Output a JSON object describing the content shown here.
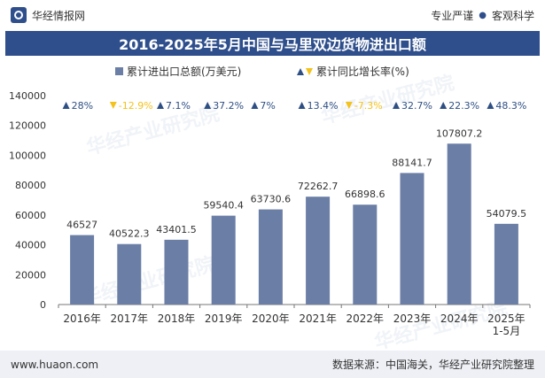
{
  "header": {
    "site": "华经情报网",
    "tag1": "专业严谨",
    "tag2": "客观科学"
  },
  "title": "2016-2025年5月中国与马里双边货物进出口额",
  "footer": {
    "url": "www.huaon.com",
    "source": "数据来源：中国海关，华经产业研究院整理"
  },
  "watermark": "华经产业研究院",
  "colors": {
    "bar": "#6b7ea6",
    "up": "#2e4f84",
    "down": "#f3c21c",
    "title_bg": "#2f4f8c"
  },
  "chart_data": {
    "type": "bar",
    "categories": [
      "2016年",
      "2017年",
      "2018年",
      "2019年",
      "2020年",
      "2021年",
      "2022年",
      "2023年",
      "2024年",
      "2025年\n1-5月"
    ],
    "series": [
      {
        "name": "累计进出口总额(万美元)",
        "values": [
          46527,
          40522.3,
          43401.5,
          59540.4,
          63730.6,
          72262.7,
          66898.6,
          88141.7,
          107807.2,
          54079.5
        ]
      },
      {
        "name": "累计同比增长率(%)",
        "values": [
          28,
          -12.9,
          7.1,
          37.2,
          7,
          13.4,
          -7.3,
          32.7,
          22.3,
          48.3
        ]
      }
    ],
    "value_labels": [
      "46527",
      "40522.3",
      "43401.5",
      "59540.4",
      "63730.6",
      "72262.7",
      "66898.6",
      "88141.7",
      "107807.2",
      "54079.5"
    ],
    "growth_labels": [
      "28%",
      "-12.9%",
      "7.1%",
      "37.2%",
      "7%",
      "13.4%",
      "-7.3%",
      "32.7%",
      "22.3%",
      "48.3%"
    ],
    "y_ticks": [
      "0",
      "20000",
      "40000",
      "60000",
      "80000",
      "100000",
      "120000",
      "140000"
    ],
    "ylim": [
      0,
      140000
    ],
    "legend_position": "top-center",
    "grid": false
  }
}
